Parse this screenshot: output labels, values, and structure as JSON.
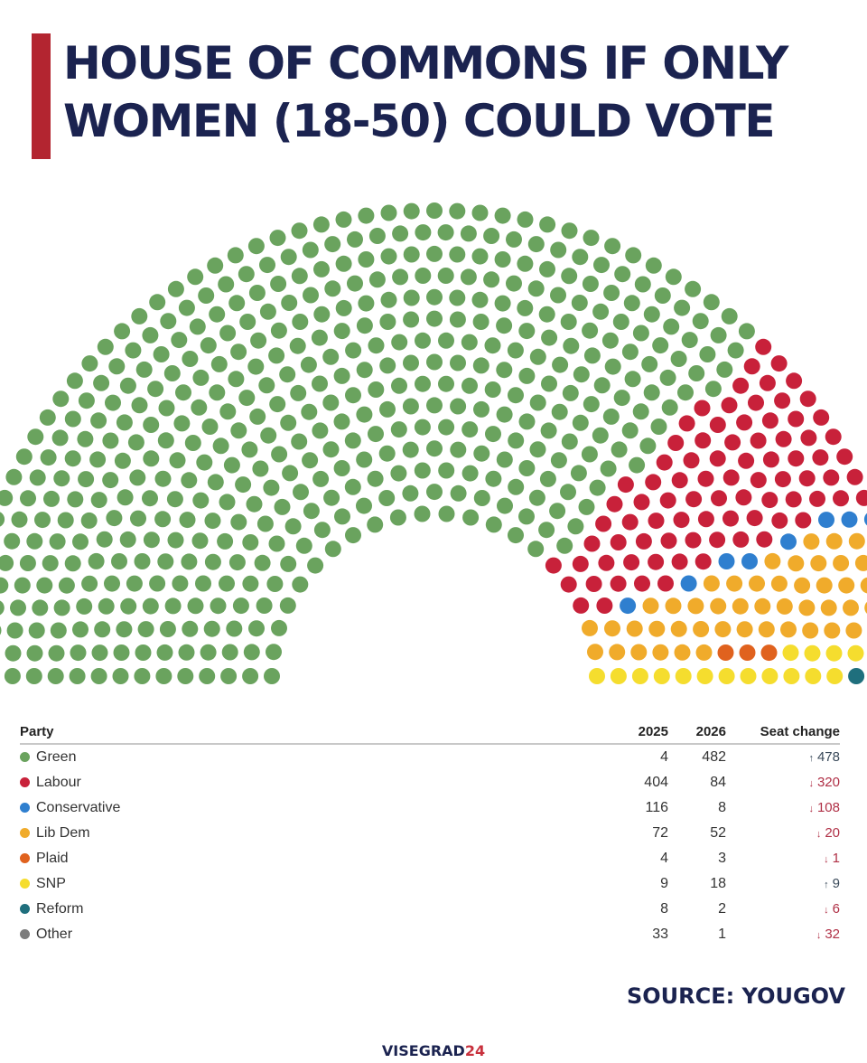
{
  "title": {
    "line1": "HOUSE OF COMMONS IF ONLY",
    "line2": "WOMEN (18-50) COULD VOTE"
  },
  "chart_data": {
    "type": "parliament",
    "title": "HOUSE OF COMMONS IF ONLY WOMEN (18-50) COULD VOTE",
    "series_name": "Seats",
    "total_seats": 650,
    "parties": [
      {
        "name": "Green",
        "color": "#6aa35e",
        "y2025": 4,
        "y2026": 482
      },
      {
        "name": "Labour",
        "color": "#c8213a",
        "y2025": 404,
        "y2026": 84
      },
      {
        "name": "Conservative",
        "color": "#2f7fcf",
        "y2025": 116,
        "y2026": 8
      },
      {
        "name": "Lib Dem",
        "color": "#f0ab2b",
        "y2025": 72,
        "y2026": 52
      },
      {
        "name": "Plaid",
        "color": "#e0621e",
        "y2025": 4,
        "y2026": 3
      },
      {
        "name": "SNP",
        "color": "#f5dd2e",
        "y2025": 9,
        "y2026": 18
      },
      {
        "name": "Reform",
        "color": "#1f6f7d",
        "y2025": 8,
        "y2026": 2
      },
      {
        "name": "Other",
        "color": "#7c7c7c",
        "y2025": 33,
        "y2026": 1
      }
    ]
  },
  "table": {
    "headers": {
      "party": "Party",
      "y2025": "2025",
      "y2026": "2026",
      "change": "Seat change"
    },
    "rows": [
      {
        "party": "Green",
        "color": "#6aa35e",
        "y2025": "4",
        "y2026": "482",
        "direction": "up",
        "arrow": "↑",
        "change": "478"
      },
      {
        "party": "Labour",
        "color": "#c8213a",
        "y2025": "404",
        "y2026": "84",
        "direction": "down",
        "arrow": "↓",
        "change": "320"
      },
      {
        "party": "Conservative",
        "color": "#2f7fcf",
        "y2025": "116",
        "y2026": "8",
        "direction": "down",
        "arrow": "↓",
        "change": "108"
      },
      {
        "party": "Lib Dem",
        "color": "#f0ab2b",
        "y2025": "72",
        "y2026": "52",
        "direction": "down",
        "arrow": "↓",
        "change": "20"
      },
      {
        "party": "Plaid",
        "color": "#e0621e",
        "y2025": "4",
        "y2026": "3",
        "direction": "down",
        "arrow": "↓",
        "change": "1"
      },
      {
        "party": "SNP",
        "color": "#f5dd2e",
        "y2025": "9",
        "y2026": "18",
        "direction": "up",
        "arrow": "↑",
        "change": "9"
      },
      {
        "party": "Reform",
        "color": "#1f6f7d",
        "y2025": "8",
        "y2026": "2",
        "direction": "down",
        "arrow": "↓",
        "change": "6"
      },
      {
        "party": "Other",
        "color": "#7c7c7c",
        "y2025": "33",
        "y2026": "1",
        "direction": "down",
        "arrow": "↓",
        "change": "32"
      }
    ]
  },
  "source": "SOURCE: YOUGOV",
  "brand": {
    "part1": "VISEGRAD",
    "part2": "24"
  }
}
